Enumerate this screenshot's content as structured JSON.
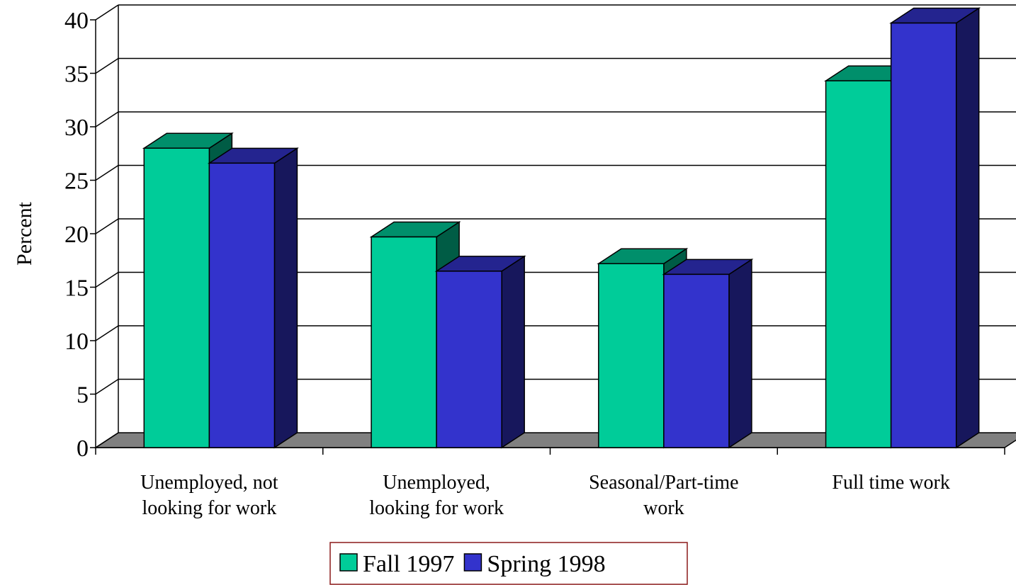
{
  "chart_data": {
    "type": "bar3d",
    "y_label": "Percent",
    "categories": [
      [
        "Unemployed, not",
        "looking for work"
      ],
      [
        "Unemployed,",
        "looking for work"
      ],
      [
        "Seasonal/Part-time",
        "work"
      ],
      [
        "Full time work"
      ]
    ],
    "series": [
      {
        "name": "Fall 1997",
        "color": "#00cc99",
        "values": [
          28,
          19.7,
          17.2,
          34.3
        ]
      },
      {
        "name": "Spring 1998",
        "color": "#3333cc",
        "values": [
          26.6,
          16.5,
          16.2,
          39.7
        ]
      }
    ],
    "ylim": [
      0,
      40
    ],
    "yticks": [
      0,
      5,
      10,
      15,
      20,
      25,
      30,
      35,
      40
    ],
    "grid": true
  }
}
